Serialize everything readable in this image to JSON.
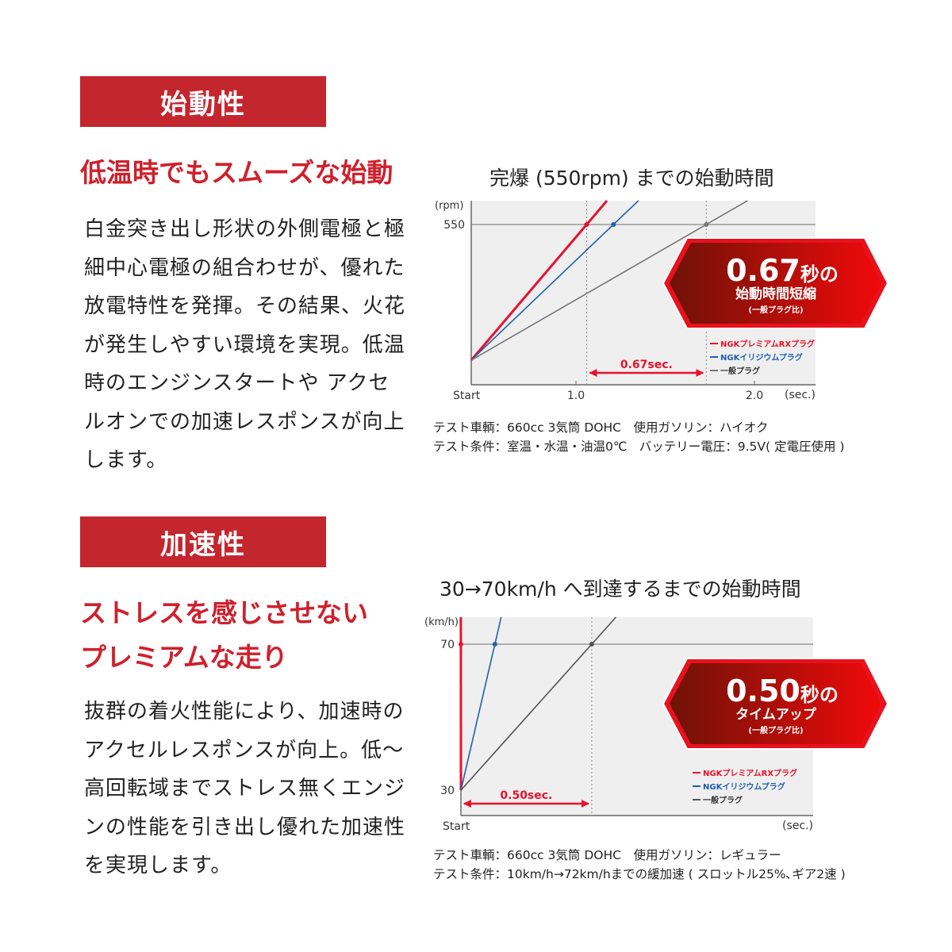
{
  "section1": {
    "header": "始動性",
    "subheading": "低温時でもスムーズな始動",
    "body": "白金突き出し形状の外側電極と極細中心電極の組合わせが、優れた放電特性を発揮。その結果、火花が発生しやすい環境を実現。低温時のエンジンスタートや アクセルオンでの加速レスポンスが向上します。",
    "notes": [
      "テスト車輌：660cc 3気筒 DOHC　使用ガソリン：ハイオク",
      "テスト条件：室温・水温・油温0℃　バッテリー電圧：9.5V( 定電圧使用 )"
    ]
  },
  "section2": {
    "header": "加速性",
    "subheading_lines": [
      "ストレスを感じさせない",
      "プレミアムな走り"
    ],
    "body": "抜群の着火性能により、加速時のアクセルレスポンスが向上。低～高回転域までストレス無くエンジンの性能を引き出し優れた加速性を実現します。",
    "notes": [
      "テスト車輌：660cc 3気筒 DOHC　使用ガソリン：レギュラー",
      "テスト条件：10km/h→72km/hまでの緩加速 ( スロットル25%､ギア2速 )"
    ]
  },
  "chart_data": [
    {
      "type": "line",
      "title": "完爆 (550rpm) までの始動時間",
      "ylabel": "(rpm)",
      "xlabel": "(sec.)",
      "x_start_label": "Start",
      "x_ticks": [
        "1.0",
        "2.0"
      ],
      "y_ticks": [
        "550"
      ],
      "target": 550,
      "series": [
        {
          "name": "NGKプレミアムRXプラグ",
          "color": "#e8112d",
          "reach_time": 1.06
        },
        {
          "name": "NGKイリジウムプラグ",
          "color": "#1f5fb0",
          "reach_time": 1.21
        },
        {
          "name": "一般プラグ",
          "color": "#777777",
          "reach_time": 1.73
        }
      ],
      "difference_label": "0.67sec.",
      "badge": {
        "big": "0.67",
        "unit": "秒の",
        "line2": "始動時間短縮",
        "line3": "(一般プラグ比)"
      }
    },
    {
      "type": "line",
      "title": "30→70km/h へ到達するまでの始動時間",
      "ylabel": "(km/h)",
      "xlabel": "(sec.)",
      "x_start_label": "Start",
      "x_ticks": [],
      "y_ticks": [
        "70",
        "30"
      ],
      "start_value": 30,
      "target": 70,
      "series": [
        {
          "name": "NGKプレミアムRXプラグ",
          "color": "#e8112d",
          "reach_time": 0.33
        },
        {
          "name": "NGKイリジウムプラグ",
          "color": "#1f5fb0",
          "reach_time": 0.46
        },
        {
          "name": "一般プラグ",
          "color": "#555555",
          "reach_time": 0.83
        }
      ],
      "difference_label": "0.50sec.",
      "badge": {
        "big": "0.50",
        "unit": "秒の",
        "line2": "タイムアップ",
        "line3": "(一般プラグ比)"
      }
    }
  ]
}
